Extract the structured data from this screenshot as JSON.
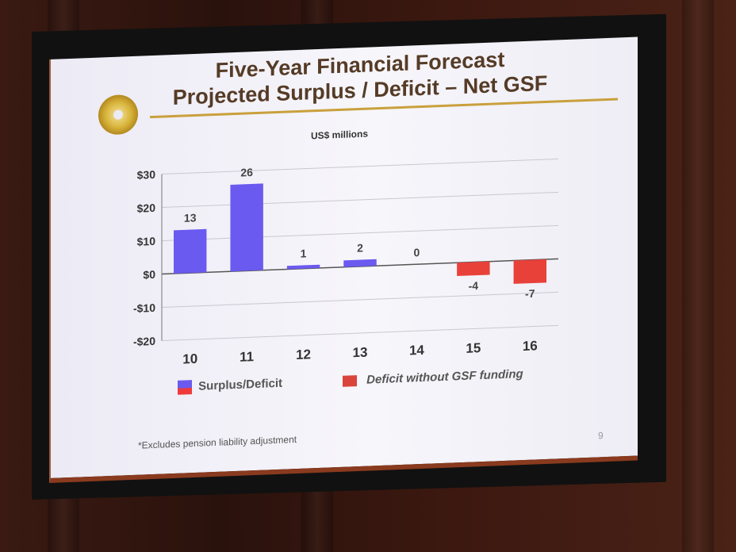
{
  "slide": {
    "title_line1": "Five-Year Financial Forecast",
    "title_line2": "Projected Surplus / Deficit – Net GSF",
    "unit_label": "US$ millions",
    "footnote": "*Excludes pension liability adjustment",
    "page_number": "9",
    "legend": [
      {
        "label": "Surplus/Deficit",
        "color": "#6a5af0"
      },
      {
        "label": "Deficit without GSF funding",
        "color": "#e8413a"
      }
    ]
  },
  "colors": {
    "surplus": "#6a5af0",
    "deficit": "#e8413a",
    "title": "#553b26",
    "rule": "#c9a03c"
  },
  "chart_data": {
    "type": "bar",
    "categories": [
      "10",
      "11",
      "12",
      "13",
      "14",
      "15",
      "16"
    ],
    "values": [
      13,
      26,
      1,
      2,
      0,
      -4,
      -7
    ],
    "value_labels": [
      "13",
      "26",
      "1",
      "2",
      "0",
      "-4",
      "-7"
    ],
    "bar_colors": [
      "surplus",
      "surplus",
      "surplus",
      "surplus",
      "surplus",
      "deficit",
      "deficit"
    ],
    "ylim": [
      -20,
      30
    ],
    "yticks": [
      30,
      20,
      10,
      0,
      -10,
      -20
    ],
    "ytick_labels": [
      "$30",
      "$20",
      "$10",
      "$0",
      "-$10",
      "-$20"
    ],
    "grid": true,
    "legend_position": "bottom"
  }
}
